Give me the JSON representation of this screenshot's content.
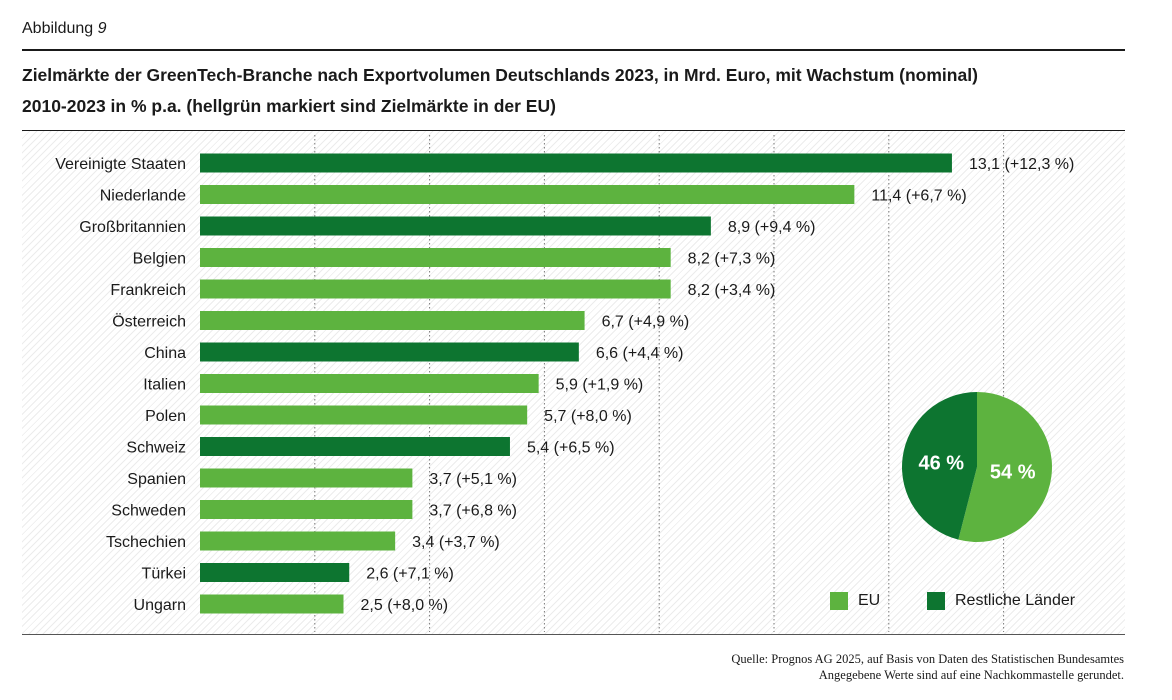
{
  "figure_label": "Abbildung",
  "figure_number": "9",
  "title_line1": "Zielmärkte der GreenTech-Branche nach Exportvolumen Deutschlands 2023, in Mrd. Euro, mit Wachstum (nominal)",
  "title_line2": "2010-2023 in % p.a. (hellgrün markiert sind Zielmärkte in der EU)",
  "source_line1": "Quelle: Prognos AG 2025, auf Basis von Daten des Statistischen Bundesamtes",
  "source_line2": "Angegebene Werte sind auf eine Nachkommastelle gerundet.",
  "colors": {
    "eu": "#5db33f",
    "rest": "#0d7530"
  },
  "chart_data": [
    {
      "type": "bar",
      "orientation": "horizontal",
      "categories": [
        "Vereinigte Staaten",
        "Niederlande",
        "Großbritannien",
        "Belgien",
        "Frankreich",
        "Österreich",
        "China",
        "Italien",
        "Polen",
        "Schweiz",
        "Spanien",
        "Schweden",
        "Tschechien",
        "Türkei",
        "Ungarn"
      ],
      "values": [
        13.1,
        11.4,
        8.9,
        8.2,
        8.2,
        6.7,
        6.6,
        5.9,
        5.7,
        5.4,
        3.7,
        3.7,
        3.4,
        2.6,
        2.5
      ],
      "groups": [
        "rest",
        "eu",
        "rest",
        "eu",
        "eu",
        "eu",
        "rest",
        "eu",
        "eu",
        "rest",
        "eu",
        "eu",
        "eu",
        "rest",
        "eu"
      ],
      "data_labels": [
        "13,1 (+12,3 %)",
        "11,4 (+6,7 %)",
        "8,9 (+9,4 %)",
        "8,2 (+7,3 %)",
        "8,2 (+3,4 %)",
        "6,7 (+4,9 %)",
        "6,6 (+4,4 %)",
        "5,9 (+1,9 %)",
        "5,7 (+8,0 %)",
        "5,4 (+6,5 %)",
        "3,7 (+5,1 %)",
        "3,7 (+6,8 %)",
        "3,4 (+3,7 %)",
        "2,6 (+7,1 %)",
        "2,5 (+8,0 %)"
      ],
      "xlim": [
        0,
        14
      ],
      "grid": true
    },
    {
      "type": "pie",
      "slices": [
        {
          "name": "EU",
          "value": 54,
          "label": "54 %",
          "group": "eu"
        },
        {
          "name": "Restliche Länder",
          "value": 46,
          "label": "46 %",
          "group": "rest"
        }
      ]
    }
  ],
  "legend": [
    {
      "group": "eu",
      "label": "EU"
    },
    {
      "group": "rest",
      "label": "Restliche Länder"
    }
  ]
}
